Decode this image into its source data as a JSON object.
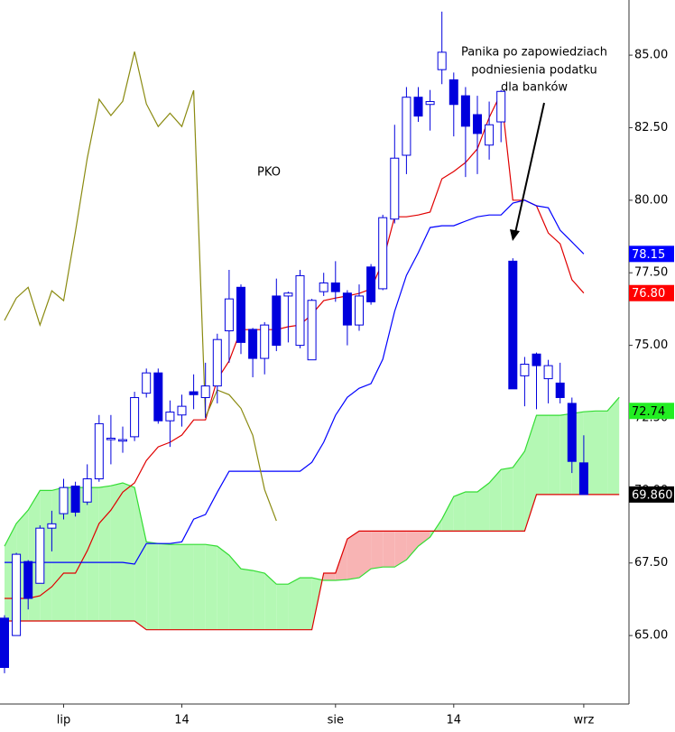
{
  "chart_data": {
    "type": "candlestick",
    "title": "PKO",
    "annotation": [
      "Panika po zapowiedziach",
      "podniesienia podatku",
      "dla banków"
    ],
    "categories": [
      null,
      null,
      null,
      null,
      null,
      "lip",
      null,
      null,
      null,
      null,
      null,
      null,
      null,
      null,
      null,
      "14",
      null,
      null,
      null,
      null,
      null,
      null,
      null,
      null,
      null,
      null,
      null,
      null,
      "sie",
      null,
      null,
      null,
      null,
      null,
      null,
      null,
      null,
      null,
      "14",
      null,
      null,
      null,
      null,
      null,
      null,
      null,
      null,
      null,
      null,
      "wrz",
      null,
      null,
      null
    ],
    "open": [
      65.6,
      65.0,
      67.55,
      66.8,
      68.7,
      69.2,
      70.15,
      69.6,
      70.4,
      71.75,
      71.7,
      71.85,
      73.35,
      74.05,
      72.4,
      72.6,
      73.4,
      73.2,
      73.6,
      75.5,
      77.0,
      75.55,
      74.55,
      76.7,
      76.7,
      75.0,
      74.5,
      76.85,
      77.15,
      76.8,
      75.7,
      77.7,
      76.95,
      79.35,
      81.55,
      83.55,
      83.3,
      84.5,
      84.15,
      83.6,
      82.95,
      81.9,
      82.7,
      77.9,
      73.95,
      74.7,
      73.85,
      73.7,
      73.0,
      70.95,
      null,
      null,
      null
    ],
    "high": [
      65.7,
      67.85,
      67.6,
      68.8,
      69.3,
      70.4,
      70.3,
      70.9,
      72.6,
      72.6,
      72.2,
      73.4,
      74.2,
      74.2,
      73.1,
      73.3,
      74.0,
      74.4,
      75.4,
      77.6,
      77.1,
      75.6,
      75.8,
      77.3,
      76.85,
      77.6,
      76.6,
      77.5,
      77.9,
      76.9,
      77.1,
      77.8,
      79.5,
      82.6,
      83.9,
      83.9,
      83.8,
      86.5,
      84.4,
      83.9,
      83.6,
      83.4,
      83.8,
      78.0,
      74.6,
      74.75,
      74.5,
      74.4,
      73.2,
      71.9,
      null,
      null,
      null
    ],
    "low": [
      63.7,
      65.0,
      65.9,
      66.8,
      67.9,
      69.0,
      69.1,
      69.5,
      70.3,
      70.9,
      71.3,
      71.7,
      73.2,
      72.3,
      71.5,
      72.2,
      72.8,
      72.5,
      73.0,
      74.4,
      74.7,
      73.9,
      74.0,
      74.8,
      75.1,
      74.9,
      74.5,
      76.7,
      76.5,
      75.0,
      75.5,
      76.4,
      76.9,
      79.2,
      80.9,
      82.7,
      82.4,
      84.0,
      82.2,
      80.8,
      80.9,
      81.4,
      82.0,
      73.5,
      72.9,
      72.8,
      73.0,
      73.0,
      70.6,
      69.86,
      null,
      null,
      null
    ],
    "close": [
      63.9,
      67.8,
      66.28,
      68.7,
      68.85,
      70.1,
      69.25,
      70.4,
      72.3,
      71.8,
      71.75,
      73.2,
      74.05,
      72.4,
      72.7,
      72.9,
      73.3,
      73.6,
      75.2,
      76.6,
      75.1,
      74.55,
      75.7,
      75.0,
      76.8,
      77.4,
      76.55,
      77.15,
      76.85,
      75.7,
      76.7,
      76.5,
      79.4,
      81.45,
      83.55,
      82.9,
      83.4,
      85.1,
      83.3,
      82.55,
      82.3,
      82.6,
      83.75,
      73.5,
      74.35,
      74.3,
      74.3,
      73.2,
      71.0,
      69.86,
      null,
      null,
      null
    ],
    "candle_color": "#0000dd",
    "lines": [
      {
        "color": "#e00000",
        "values": [
          66.28,
          66.28,
          66.28,
          66.37,
          66.68,
          67.15,
          67.15,
          67.92,
          68.86,
          69.32,
          69.94,
          70.26,
          71.03,
          71.5,
          71.66,
          71.91,
          72.43,
          72.43,
          73.83,
          74.46,
          75.54,
          75.54,
          75.54,
          75.54,
          75.64,
          75.7,
          76.07,
          76.54,
          76.63,
          76.7,
          76.79,
          76.94,
          77.88,
          79.43,
          79.43,
          79.49,
          79.59,
          80.74,
          80.99,
          81.3,
          81.77,
          82.85,
          83.69,
          80.0,
          80.0,
          79.81,
          78.87,
          78.5,
          77.26,
          76.8,
          null,
          null,
          null
        ]
      },
      {
        "color": "#0000ff",
        "values": [
          67.52,
          67.52,
          67.52,
          67.52,
          67.52,
          67.52,
          67.52,
          67.52,
          67.52,
          67.52,
          67.52,
          67.46,
          68.17,
          68.17,
          68.17,
          68.23,
          69.01,
          69.17,
          69.94,
          70.66,
          70.66,
          70.66,
          70.66,
          70.66,
          70.66,
          70.66,
          70.97,
          71.66,
          72.59,
          73.21,
          73.52,
          73.68,
          74.52,
          76.17,
          77.41,
          78.19,
          79.06,
          79.12,
          79.12,
          79.28,
          79.43,
          79.49,
          79.49,
          79.9,
          80.0,
          79.81,
          79.74,
          78.97,
          78.56,
          78.15,
          null,
          null,
          null
        ]
      },
      {
        "color": "#8a8a10",
        "values": [
          75.86,
          76.63,
          77.0,
          75.7,
          76.88,
          76.54,
          78.92,
          81.45,
          83.48,
          82.92,
          83.41,
          85.12,
          83.32,
          82.54,
          83.0,
          82.54,
          83.79,
          72.52,
          73.46,
          73.3,
          72.83,
          71.9,
          70.03,
          68.95,
          null,
          null,
          null,
          null,
          null,
          null,
          null,
          null,
          null,
          null,
          null,
          null,
          null,
          null,
          null,
          null,
          null,
          null,
          null,
          null,
          null,
          null,
          null,
          null,
          null,
          null,
          null,
          null,
          null
        ]
      }
    ],
    "cloud": {
      "a": {
        "color": "#33dd33",
        "values": [
          68.08,
          68.86,
          69.32,
          70.0,
          70.0,
          70.1,
          70.1,
          70.1,
          70.1,
          70.16,
          70.26,
          70.1,
          68.23,
          68.17,
          68.14,
          68.14,
          68.14,
          68.14,
          68.08,
          67.77,
          67.3,
          67.24,
          67.15,
          66.77,
          66.77,
          66.99,
          66.99,
          66.9,
          66.9,
          66.93,
          66.99,
          67.3,
          67.36,
          67.36,
          67.61,
          68.08,
          68.39,
          69.01,
          69.79,
          69.95,
          69.95,
          70.26,
          70.72,
          70.79,
          71.35,
          72.59,
          72.59,
          72.59,
          72.65,
          72.71,
          72.74,
          72.74,
          73.21
        ]
      },
      "b": {
        "color": "#dd0000",
        "values": [
          65.5,
          65.5,
          65.5,
          65.5,
          65.5,
          65.5,
          65.5,
          65.5,
          65.5,
          65.5,
          65.5,
          65.5,
          65.2,
          65.2,
          65.2,
          65.2,
          65.2,
          65.2,
          65.2,
          65.2,
          65.2,
          65.2,
          65.2,
          65.2,
          65.2,
          65.2,
          65.2,
          67.15,
          67.15,
          68.33,
          68.6,
          68.6,
          68.6,
          68.6,
          68.6,
          68.6,
          68.6,
          68.6,
          68.6,
          68.6,
          68.6,
          68.6,
          68.6,
          68.6,
          68.6,
          69.86,
          69.86,
          69.86,
          69.86,
          69.86,
          69.86,
          69.86,
          69.86
        ]
      },
      "fill_up": "#b4f8b4",
      "fill_down": "#f8b4b4"
    },
    "price_labels": [
      {
        "value": 78.15,
        "label": "78.15",
        "color": "#0000ff",
        "text_color": "#ffffff"
      },
      {
        "value": 76.8,
        "label": "76.80",
        "color": "#ff0000",
        "text_color": "#ffffff"
      },
      {
        "value": 72.74,
        "label": "72.74",
        "color": "#22ee22",
        "text_color": "#000000"
      },
      {
        "value": 69.86,
        "label": "69.860",
        "color": "#000000",
        "text_color": "#ffffff"
      }
    ],
    "ylim": [
      62.64,
      86.9
    ],
    "yticks": [
      {
        "value": 65,
        "label": "65.00"
      },
      {
        "value": 67.5,
        "label": "67.50"
      },
      {
        "value": 70,
        "label": "70.00"
      },
      {
        "value": 72.5,
        "label": "72.50"
      },
      {
        "value": 75,
        "label": "75.00"
      },
      {
        "value": 77.5,
        "label": "77.50"
      },
      {
        "value": 80,
        "label": "80.00"
      },
      {
        "value": 82.5,
        "label": "82.50"
      },
      {
        "value": 85,
        "label": "85.00"
      }
    ],
    "grid": false
  }
}
